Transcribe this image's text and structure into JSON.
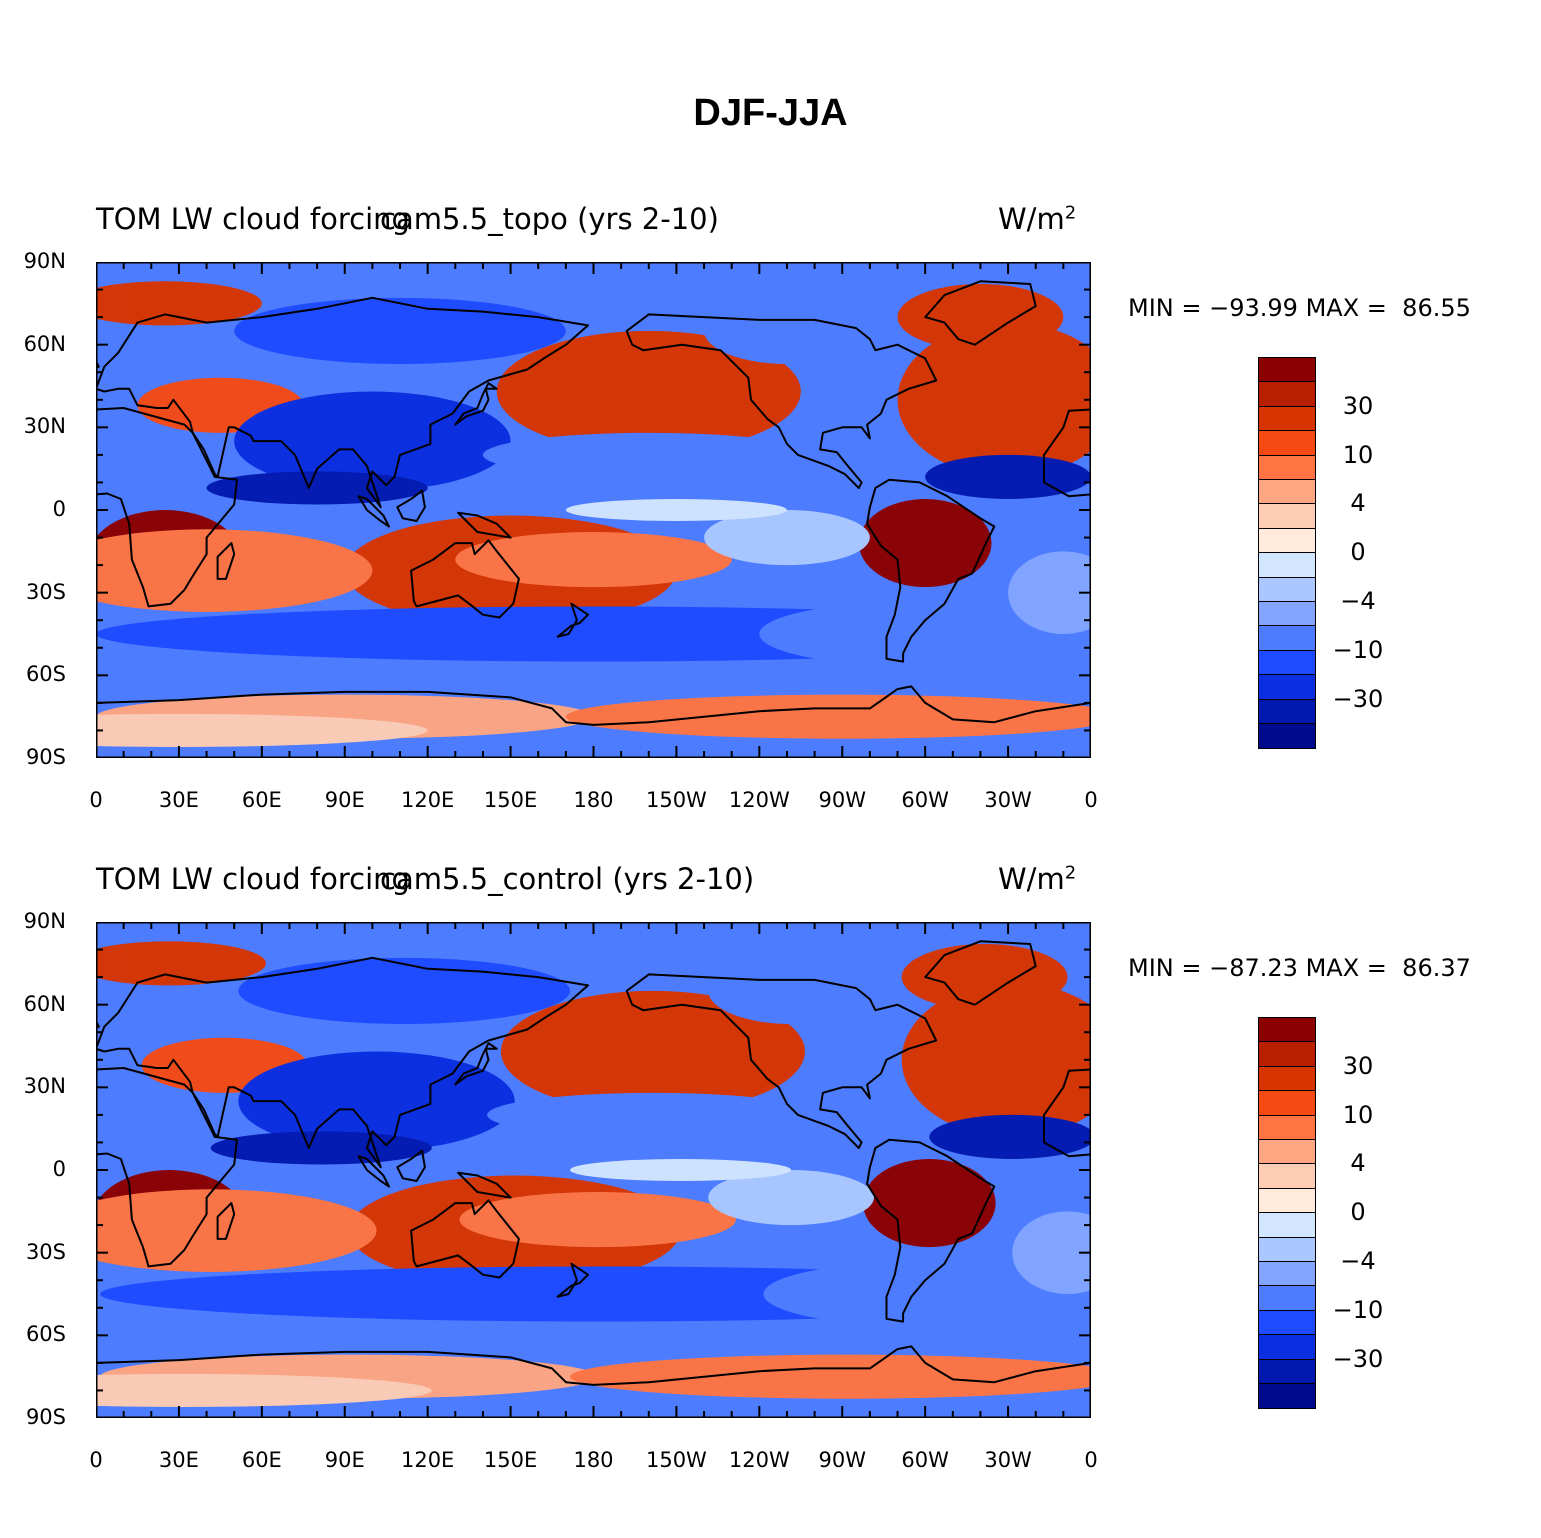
{
  "title": "DJF-JJA",
  "panels": [
    {
      "left_title": "TOM LW cloud forcing",
      "center_title": "cam5.5_topo (yrs 2-10)",
      "units": "W/m",
      "units_exp": "2",
      "min_label": "MIN =",
      "min_value": "−93.99",
      "max_label": "MAX =",
      "max_value": "86.55"
    },
    {
      "left_title": "TOM LW cloud forcing",
      "center_title": "cam5.5_control (yrs 2-10)",
      "units": "W/m",
      "units_exp": "2",
      "min_label": "MIN =",
      "min_value": "−87.23",
      "max_label": "MAX =",
      "max_value": "86.37"
    }
  ],
  "lat_ticks": [
    "90N",
    "60N",
    "30N",
    "0",
    "30S",
    "60S",
    "90S"
  ],
  "lon_ticks": [
    "0",
    "30E",
    "60E",
    "90E",
    "120E",
    "150E",
    "180",
    "150W",
    "120W",
    "90W",
    "60W",
    "30W",
    "0"
  ],
  "colorbar": {
    "colors": [
      "#8b0000",
      "#b81e00",
      "#d83400",
      "#f64a14",
      "#ff7442",
      "#ffa682",
      "#ffcdb4",
      "#ffeadc",
      "#d2e6ff",
      "#aac8ff",
      "#82a6ff",
      "#4d7cff",
      "#1e4bff",
      "#0a2ee0",
      "#0219b0",
      "#000a8c"
    ],
    "labels": [
      "30",
      "10",
      "4",
      "0",
      "−4",
      "−10",
      "−30"
    ]
  }
}
